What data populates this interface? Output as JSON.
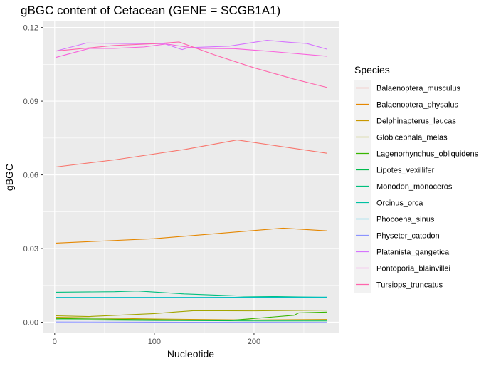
{
  "chart_data": {
    "type": "line",
    "title": "gBGC content of Cetacean (GENE = SCGB1A1)",
    "xlabel": "Nucleotide",
    "ylabel": "gBGC",
    "xlim": [
      -12,
      285
    ],
    "ylim": [
      -0.0045,
      0.1225
    ],
    "xticks": [
      0,
      100,
      200
    ],
    "yticks": [
      0.0,
      0.03,
      0.06,
      0.09,
      0.12
    ],
    "ytick_labels": [
      "0.00",
      "0.03",
      "0.06",
      "0.09",
      "0.12"
    ],
    "grid": true,
    "legend": {
      "title": "Species",
      "position": "right"
    },
    "series": [
      {
        "name": "Balaenoptera_musculus",
        "color": "#F8766D",
        "points": [
          [
            1,
            0.0632
          ],
          [
            60,
            0.0661
          ],
          [
            130,
            0.0703
          ],
          [
            183,
            0.0742
          ],
          [
            273,
            0.0688
          ]
        ]
      },
      {
        "name": "Balaenoptera_physalus",
        "color": "#E58700",
        "points": [
          [
            1,
            0.0322
          ],
          [
            100,
            0.034
          ],
          [
            229,
            0.0383
          ],
          [
            273,
            0.0372
          ]
        ]
      },
      {
        "name": "Delphinapterus_leucas",
        "color": "#C99800",
        "points": [
          [
            1,
            0.002
          ],
          [
            100,
            0.0013
          ],
          [
            200,
            0.0009
          ],
          [
            273,
            0.0011
          ]
        ]
      },
      {
        "name": "Globicephala_melas",
        "color": "#A3A500",
        "points": [
          [
            1,
            0.0026
          ],
          [
            34,
            0.0023
          ],
          [
            100,
            0.0035
          ],
          [
            140,
            0.0047
          ],
          [
            200,
            0.0046
          ],
          [
            273,
            0.0049
          ]
        ]
      },
      {
        "name": "Lagenorhynchus_obliquidens",
        "color": "#39B600",
        "points": [
          [
            1,
            0.0015
          ],
          [
            100,
            0.001
          ],
          [
            175,
            0.0007
          ],
          [
            240,
            0.0028
          ],
          [
            245,
            0.0038
          ],
          [
            273,
            0.0041
          ]
        ]
      },
      {
        "name": "Lipotes_vexillifer",
        "color": "#00BB4E",
        "points": [
          [
            1,
            0.001
          ],
          [
            100,
            0.0007
          ],
          [
            200,
            0.0005
          ],
          [
            273,
            0.0005
          ]
        ]
      },
      {
        "name": "Monodon_monoceros",
        "color": "#00BF7D",
        "points": [
          [
            1,
            0.0122
          ],
          [
            60,
            0.0124
          ],
          [
            83,
            0.0127
          ],
          [
            130,
            0.0115
          ],
          [
            190,
            0.0106
          ],
          [
            273,
            0.0101
          ]
        ]
      },
      {
        "name": "Orcinus_orca",
        "color": "#00C1A3",
        "points": [
          [
            1,
            0.0101
          ],
          [
            150,
            0.0101
          ],
          [
            273,
            0.0102
          ]
        ]
      },
      {
        "name": "Phocoena_sinus",
        "color": "#00BAE0",
        "points": [
          [
            1,
            0.01
          ],
          [
            100,
            0.01
          ],
          [
            273,
            0.01
          ]
        ]
      },
      {
        "name": "Physeter_catodon",
        "color": "#8B93FF",
        "points": [
          [
            1,
            0.0001
          ],
          [
            100,
            0.0
          ],
          [
            273,
            -0.0001
          ]
        ]
      },
      {
        "name": "Platanista_gangetica",
        "color": "#D575FE",
        "points": [
          [
            1,
            0.1104
          ],
          [
            32,
            0.1137
          ],
          [
            70,
            0.1135
          ],
          [
            110,
            0.1134
          ],
          [
            128,
            0.111
          ],
          [
            134,
            0.1118
          ],
          [
            175,
            0.1124
          ],
          [
            213,
            0.1148
          ],
          [
            235,
            0.114
          ],
          [
            253,
            0.1135
          ],
          [
            273,
            0.1112
          ]
        ]
      },
      {
        "name": "Pontoporia_blainvillei",
        "color": "#F962DD",
        "points": [
          [
            1,
            0.1078
          ],
          [
            35,
            0.1115
          ],
          [
            60,
            0.1115
          ],
          [
            90,
            0.1121
          ],
          [
            112,
            0.1133
          ],
          [
            125,
            0.1125
          ],
          [
            143,
            0.1115
          ],
          [
            180,
            0.1114
          ],
          [
            210,
            0.1105
          ],
          [
            273,
            0.1083
          ]
        ]
      },
      {
        "name": "Tursiops_truncatus",
        "color": "#FF65AC",
        "points": [
          [
            1,
            0.1104
          ],
          [
            60,
            0.1127
          ],
          [
            100,
            0.1134
          ],
          [
            125,
            0.1141
          ],
          [
            160,
            0.1089
          ],
          [
            200,
            0.1036
          ],
          [
            240,
            0.099
          ],
          [
            273,
            0.0956
          ]
        ]
      }
    ]
  }
}
